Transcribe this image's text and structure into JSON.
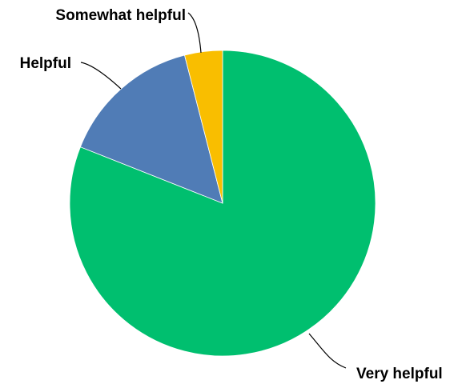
{
  "chart_data": {
    "type": "pie",
    "slices": [
      {
        "label": "Very helpful",
        "value": 81,
        "color": "#00BF6F"
      },
      {
        "label": "Helpful",
        "value": 15,
        "color": "#507CB6"
      },
      {
        "label": "Somewhat helpful",
        "value": 4,
        "color": "#F9BE00"
      }
    ],
    "start": "12 o'clock",
    "direction": "clockwise",
    "legend": "none",
    "data_labels": "category names outside with leader lines"
  }
}
